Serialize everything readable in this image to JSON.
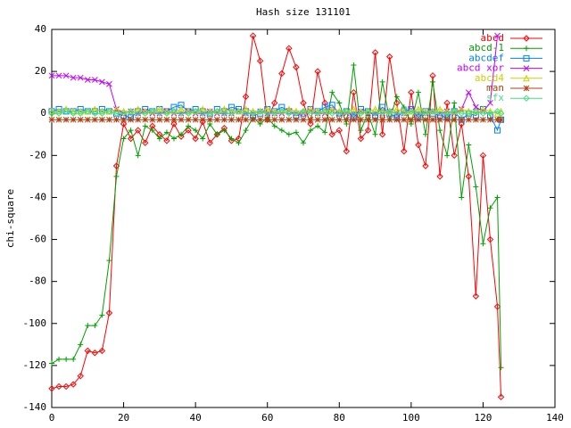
{
  "chart_data": {
    "type": "line",
    "title": "Hash size 131101",
    "y_label": "chi-square",
    "xlim": [
      0,
      140
    ],
    "xticks": [
      0,
      20,
      40,
      60,
      80,
      100,
      120,
      140
    ],
    "ylim": [
      -140,
      40
    ],
    "yticks": [
      -140,
      -120,
      -100,
      -80,
      -60,
      -40,
      -20,
      0,
      20,
      40
    ],
    "grid": false,
    "legend": "top-right",
    "x": [
      0,
      2,
      4,
      6,
      8,
      10,
      12,
      14,
      16,
      18,
      20,
      22,
      24,
      26,
      28,
      30,
      32,
      34,
      36,
      38,
      40,
      42,
      44,
      46,
      48,
      50,
      52,
      54,
      56,
      58,
      60,
      62,
      64,
      66,
      68,
      70,
      72,
      74,
      76,
      78,
      80,
      82,
      84,
      86,
      88,
      90,
      92,
      94,
      96,
      98,
      100,
      102,
      104,
      106,
      108,
      110,
      112,
      114,
      116,
      118,
      120,
      122,
      124,
      125
    ],
    "series": [
      {
        "name": "abcd",
        "color": "#ff0000",
        "marker": "diamond",
        "values": [
          -131,
          -130,
          -130,
          -129,
          -125,
          -113,
          -114,
          -113,
          -95,
          -25,
          -5,
          -12,
          -8,
          -14,
          -6,
          -10,
          -13,
          -5,
          -11,
          -8,
          -12,
          -4,
          -14,
          -10,
          -7,
          -13,
          -12,
          8,
          37,
          25,
          -3,
          5,
          19,
          31,
          22,
          5,
          -5,
          20,
          5,
          -10,
          -8,
          -18,
          10,
          -12,
          -8,
          29,
          -10,
          27,
          5,
          -18,
          10,
          -15,
          -25,
          18,
          -30,
          5,
          -20,
          -5,
          -30,
          -87,
          -20,
          -60,
          -92,
          -135
        ]
      },
      {
        "name": "abcd-1",
        "color": "#00a000",
        "marker": "plus",
        "values": [
          -119,
          -117,
          -117,
          -117,
          -110,
          -101,
          -101,
          -96,
          -70,
          -30,
          -12,
          -8,
          -20,
          -6,
          -8,
          -12,
          -9,
          -12,
          -10,
          -6,
          -8,
          -12,
          -5,
          -10,
          -8,
          -12,
          -14,
          -8,
          -2,
          -5,
          -2,
          -6,
          -8,
          -10,
          -9,
          -14,
          -8,
          -6,
          -9,
          10,
          5,
          -5,
          23,
          -8,
          0,
          -10,
          15,
          -3,
          8,
          3,
          -5,
          10,
          -10,
          15,
          -8,
          -20,
          5,
          -40,
          -15,
          -35,
          -62,
          -45,
          -40,
          -121
        ]
      },
      {
        "name": "abcdef",
        "color": "#0080ff",
        "marker": "square",
        "values": [
          1,
          2,
          1,
          1,
          2,
          1,
          1,
          2,
          1,
          0,
          -1,
          -2,
          1,
          2,
          1,
          2,
          1,
          3,
          4,
          1,
          2,
          1,
          0,
          2,
          1,
          3,
          2,
          1,
          -1,
          0,
          2,
          1,
          3,
          1,
          -1,
          0,
          2,
          1,
          3,
          4,
          0,
          1,
          -2,
          2,
          1,
          -1,
          3,
          0,
          -2,
          1,
          2,
          -2,
          1,
          0,
          -1,
          -2,
          1,
          -3,
          0,
          -1,
          2,
          -1,
          -8,
          -3
        ]
      },
      {
        "name": "abcd xor",
        "color": "#c000ff",
        "marker": "x",
        "values": [
          18,
          18,
          18,
          17,
          17,
          16,
          16,
          15,
          14,
          2,
          0,
          1,
          0,
          1,
          0,
          0,
          1,
          0,
          0,
          1,
          0,
          0,
          1,
          0,
          0,
          0,
          1,
          0,
          0,
          1,
          0,
          0,
          0,
          1,
          0,
          0,
          1,
          0,
          0,
          1,
          0,
          0,
          0,
          1,
          0,
          0,
          0,
          1,
          0,
          0,
          2,
          0,
          0,
          1,
          0,
          1,
          0,
          2,
          10,
          3,
          1,
          5,
          37,
          null
        ]
      },
      {
        "name": "abcd4",
        "color": "#d0d000",
        "marker": "triangle",
        "values": [
          1,
          1,
          2,
          1,
          1,
          1,
          2,
          1,
          1,
          2,
          1,
          1,
          2,
          1,
          1,
          2,
          1,
          1,
          2,
          1,
          1,
          2,
          1,
          1,
          2,
          1,
          1,
          2,
          1,
          1,
          2,
          1,
          1,
          2,
          1,
          1,
          2,
          1,
          1,
          2,
          1,
          1,
          2,
          1,
          1,
          2,
          1,
          1,
          2,
          1,
          1,
          2,
          1,
          1,
          2,
          1,
          1,
          2,
          1,
          1,
          2,
          1,
          0,
          1
        ]
      },
      {
        "name": "man",
        "color": "#b04010",
        "marker": "star",
        "values": [
          -3,
          -3,
          -3,
          -3,
          -3,
          -3,
          -3,
          -3,
          -3,
          -3,
          -3,
          -3,
          -3,
          -3,
          -3,
          -3,
          -3,
          -3,
          -3,
          -3,
          -3,
          -3,
          -3,
          -3,
          -3,
          -3,
          -3,
          -3,
          -3,
          -3,
          -3,
          -3,
          -3,
          -3,
          -3,
          -3,
          -3,
          -3,
          -3,
          -3,
          -3,
          -3,
          -3,
          -3,
          -3,
          -3,
          -3,
          -3,
          -3,
          -3,
          -3,
          -3,
          -3,
          -3,
          -3,
          -3,
          -3,
          -3,
          -3,
          -3,
          -3,
          -3,
          -3,
          -3
        ]
      },
      {
        "name": "sfx",
        "color": "#40e080",
        "marker": "diamond",
        "values": [
          0,
          0,
          1,
          0,
          0,
          1,
          0,
          0,
          1,
          0,
          0,
          1,
          0,
          0,
          1,
          0,
          0,
          1,
          0,
          0,
          1,
          0,
          0,
          1,
          0,
          0,
          1,
          0,
          0,
          1,
          0,
          0,
          1,
          0,
          0,
          1,
          0,
          0,
          1,
          0,
          0,
          1,
          0,
          0,
          1,
          0,
          0,
          1,
          0,
          0,
          1,
          0,
          0,
          1,
          0,
          0,
          1,
          0,
          0,
          1,
          0,
          0,
          1,
          0
        ]
      }
    ]
  }
}
